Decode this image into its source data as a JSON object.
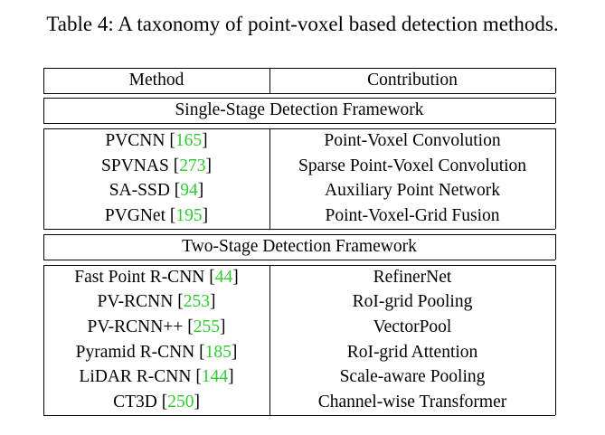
{
  "caption": "Table 4: A taxonomy of point-voxel based detection methods.",
  "header": {
    "method": "Method",
    "contribution": "Contribution"
  },
  "groups": [
    {
      "title": "Single-Stage Detection Framework",
      "rows": [
        {
          "method": "PVCNN",
          "cite": "165",
          "contribution": "Point-Voxel Convolution"
        },
        {
          "method": "SPVNAS",
          "cite": "273",
          "contribution": "Sparse Point-Voxel Convolution"
        },
        {
          "method": "SA-SSD",
          "cite": "94",
          "contribution": "Auxiliary Point Network"
        },
        {
          "method": "PVGNet",
          "cite": "195",
          "contribution": "Point-Voxel-Grid Fusion"
        }
      ]
    },
    {
      "title": "Two-Stage Detection Framework",
      "rows": [
        {
          "method": "Fast Point R-CNN",
          "cite": "44",
          "contribution": "RefinerNet"
        },
        {
          "method": "PV-RCNN",
          "cite": "253",
          "contribution": "RoI-grid Pooling"
        },
        {
          "method": "PV-RCNN++",
          "cite": "255",
          "contribution": "VectorPool"
        },
        {
          "method": "Pyramid R-CNN",
          "cite": "185",
          "contribution": "RoI-grid Attention"
        },
        {
          "method": "LiDAR R-CNN",
          "cite": "144",
          "contribution": "Scale-aware Pooling"
        },
        {
          "method": "CT3D",
          "cite": "250",
          "contribution": "Channel-wise Transformer"
        }
      ]
    }
  ]
}
